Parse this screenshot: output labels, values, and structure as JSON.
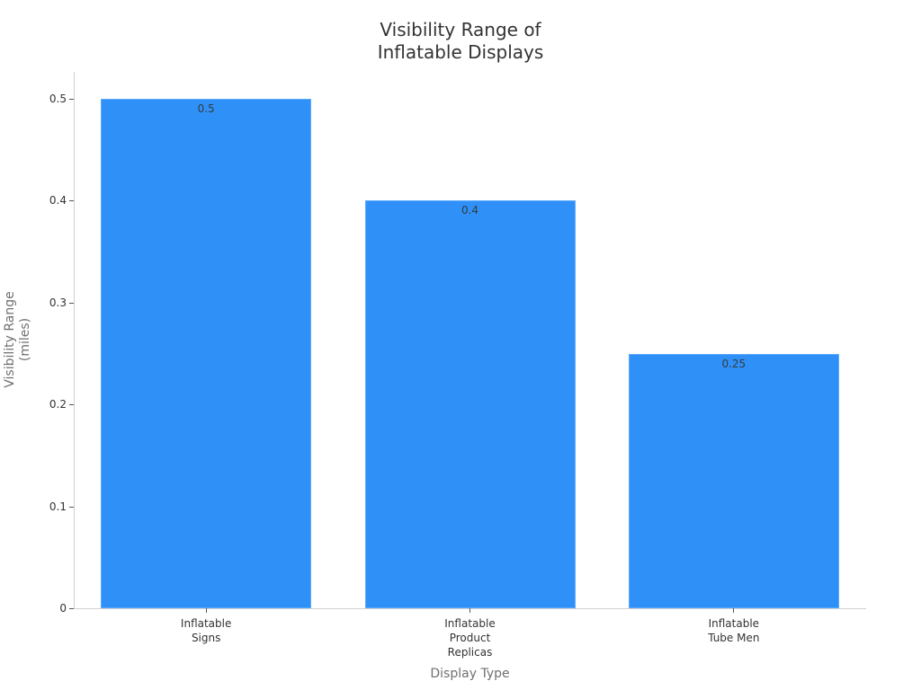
{
  "chart_data": {
    "type": "bar",
    "title": "Visibility Range of Inflatable Displays",
    "title_lines": [
      "Visibility Range of",
      "Inflatable Displays"
    ],
    "xlabel": "Display Type",
    "ylabel": "Visibility Range (miles)",
    "ylabel_lines": [
      "Visibility Range",
      "(miles)"
    ],
    "categories": [
      "Inflatable Signs",
      "Inflatable Product Replicas",
      "Inflatable Tube Men"
    ],
    "category_lines": [
      [
        "Inflatable",
        "Signs"
      ],
      [
        "Inflatable",
        "Product",
        "Replicas"
      ],
      [
        "Inflatable",
        "Tube Men"
      ]
    ],
    "values": [
      0.5,
      0.4,
      0.25
    ],
    "data_labels": [
      "0.5",
      "0.4",
      "0.25"
    ],
    "ylim": [
      0,
      0.525
    ],
    "yticks": [
      0,
      0.1,
      0.2,
      0.3,
      0.4,
      0.5
    ],
    "ytick_labels": [
      "0",
      "0.1",
      "0.2",
      "0.3",
      "0.4",
      "0.5"
    ],
    "grid": false,
    "legend": null,
    "colors": {
      "bar": "#2f91f7",
      "bar_edge": "#5aa9ff"
    }
  }
}
